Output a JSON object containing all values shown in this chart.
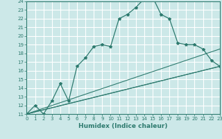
{
  "xlabel": "Humidex (Indice chaleur)",
  "bg_color": "#cce8e8",
  "line_color": "#2d7a6e",
  "grid_color": "#ffffff",
  "xmin": 0,
  "xmax": 23,
  "ymin": 11,
  "ymax": 24,
  "series1_x": [
    0,
    1,
    2,
    3,
    4,
    5,
    6,
    7,
    8,
    9,
    10,
    11,
    12,
    13,
    14,
    15,
    16,
    17,
    18,
    19,
    20,
    21,
    22,
    23
  ],
  "series1_y": [
    11,
    12,
    11,
    12.5,
    14.5,
    12.5,
    16.5,
    17.5,
    18.8,
    19,
    18.8,
    22,
    22.5,
    23.3,
    24.3,
    24.5,
    22.5,
    22,
    19.2,
    19,
    19,
    18.5,
    17.2,
    16.5
  ],
  "series2_x": [
    0,
    23
  ],
  "series2_y": [
    11,
    18.5
  ],
  "series3_x": [
    0,
    23
  ],
  "series3_y": [
    11,
    16.5
  ],
  "series4_x": [
    0,
    23
  ],
  "series4_y": [
    11,
    16.5
  ]
}
